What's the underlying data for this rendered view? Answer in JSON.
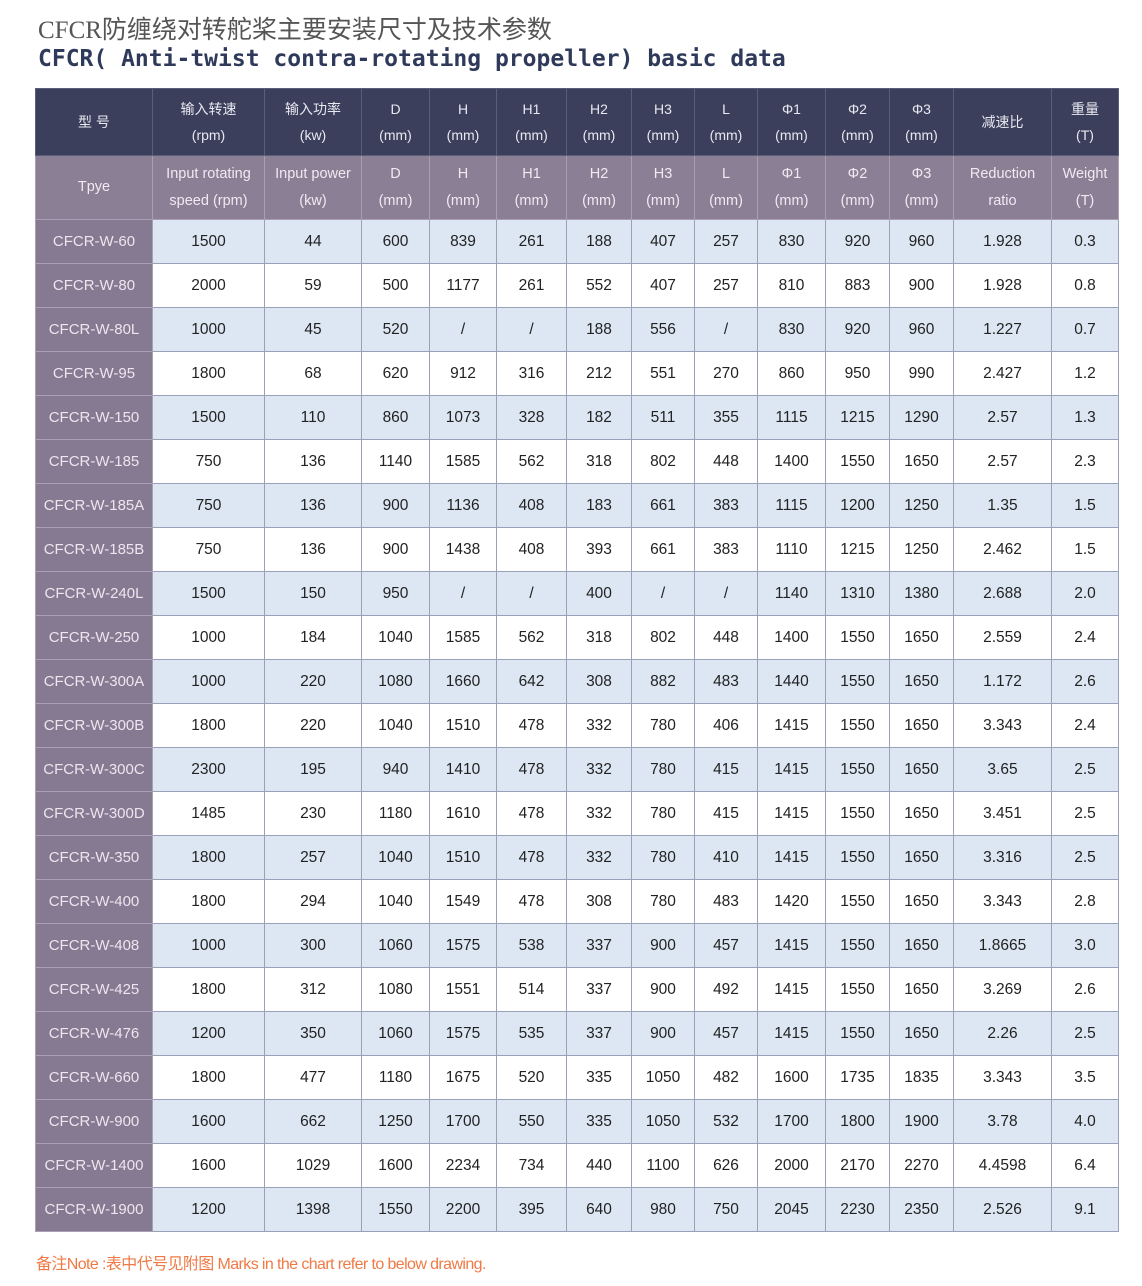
{
  "title_cn": "CFCR防缠绕对转舵桨主要安装尺寸及技术参数",
  "title_en": "CFCR( Anti-twist contra-rotating propeller) basic data",
  "header_cn": [
    [
      "型 号",
      ""
    ],
    [
      "输入转速",
      "(rpm)"
    ],
    [
      "输入功率",
      "(kw)"
    ],
    [
      "D",
      "(mm)"
    ],
    [
      "H",
      "(mm)"
    ],
    [
      "H1",
      "(mm)"
    ],
    [
      "H2",
      "(mm)"
    ],
    [
      "H3",
      "(mm)"
    ],
    [
      "L",
      "(mm)"
    ],
    [
      "Φ1",
      "(mm)"
    ],
    [
      "Φ2",
      "(mm)"
    ],
    [
      "Φ3",
      "(mm)"
    ],
    [
      "减速比",
      ""
    ],
    [
      "重量",
      "(T)"
    ]
  ],
  "header_en": [
    [
      "Tpye",
      ""
    ],
    [
      "Input rotating",
      "speed (rpm)"
    ],
    [
      "Input power",
      "(kw)"
    ],
    [
      "D",
      "(mm)"
    ],
    [
      "H",
      "(mm)"
    ],
    [
      "H1",
      "(mm)"
    ],
    [
      "H2",
      "(mm)"
    ],
    [
      "H3",
      "(mm)"
    ],
    [
      "L",
      "(mm)"
    ],
    [
      "Φ1",
      "(mm)"
    ],
    [
      "Φ2",
      "(mm)"
    ],
    [
      "Φ3",
      "(mm)"
    ],
    [
      "Reduction",
      "ratio"
    ],
    [
      "Weight",
      "(T)"
    ]
  ],
  "rows": [
    [
      "CFCR-W-60",
      "1500",
      "44",
      "600",
      "839",
      "261",
      "188",
      "407",
      "257",
      "830",
      "920",
      "960",
      "1.928",
      "0.3"
    ],
    [
      "CFCR-W-80",
      "2000",
      "59",
      "500",
      "1177",
      "261",
      "552",
      "407",
      "257",
      "810",
      "883",
      "900",
      "1.928",
      "0.8"
    ],
    [
      "CFCR-W-80L",
      "1000",
      "45",
      "520",
      "/",
      "/",
      "188",
      "556",
      "/",
      "830",
      "920",
      "960",
      "1.227",
      "0.7"
    ],
    [
      "CFCR-W-95",
      "1800",
      "68",
      "620",
      "912",
      "316",
      "212",
      "551",
      "270",
      "860",
      "950",
      "990",
      "2.427",
      "1.2"
    ],
    [
      "CFCR-W-150",
      "1500",
      "110",
      "860",
      "1073",
      "328",
      "182",
      "511",
      "355",
      "1115",
      "1215",
      "1290",
      "2.57",
      "1.3"
    ],
    [
      "CFCR-W-185",
      "750",
      "136",
      "1140",
      "1585",
      "562",
      "318",
      "802",
      "448",
      "1400",
      "1550",
      "1650",
      "2.57",
      "2.3"
    ],
    [
      "CFCR-W-185A",
      "750",
      "136",
      "900",
      "1136",
      "408",
      "183",
      "661",
      "383",
      "1115",
      "1200",
      "1250",
      "1.35",
      "1.5"
    ],
    [
      "CFCR-W-185B",
      "750",
      "136",
      "900",
      "1438",
      "408",
      "393",
      "661",
      "383",
      "1110",
      "1215",
      "1250",
      "2.462",
      "1.5"
    ],
    [
      "CFCR-W-240L",
      "1500",
      "150",
      "950",
      "/",
      "/",
      "400",
      "/",
      "/",
      "1140",
      "1310",
      "1380",
      "2.688",
      "2.0"
    ],
    [
      "CFCR-W-250",
      "1000",
      "184",
      "1040",
      "1585",
      "562",
      "318",
      "802",
      "448",
      "1400",
      "1550",
      "1650",
      "2.559",
      "2.4"
    ],
    [
      "CFCR-W-300A",
      "1000",
      "220",
      "1080",
      "1660",
      "642",
      "308",
      "882",
      "483",
      "1440",
      "1550",
      "1650",
      "1.172",
      "2.6"
    ],
    [
      "CFCR-W-300B",
      "1800",
      "220",
      "1040",
      "1510",
      "478",
      "332",
      "780",
      "406",
      "1415",
      "1550",
      "1650",
      "3.343",
      "2.4"
    ],
    [
      "CFCR-W-300C",
      "2300",
      "195",
      "940",
      "1410",
      "478",
      "332",
      "780",
      "415",
      "1415",
      "1550",
      "1650",
      "3.65",
      "2.5"
    ],
    [
      "CFCR-W-300D",
      "1485",
      "230",
      "1180",
      "1610",
      "478",
      "332",
      "780",
      "415",
      "1415",
      "1550",
      "1650",
      "3.451",
      "2.5"
    ],
    [
      "CFCR-W-350",
      "1800",
      "257",
      "1040",
      "1510",
      "478",
      "332",
      "780",
      "410",
      "1415",
      "1550",
      "1650",
      "3.316",
      "2.5"
    ],
    [
      "CFCR-W-400",
      "1800",
      "294",
      "1040",
      "1549",
      "478",
      "308",
      "780",
      "483",
      "1420",
      "1550",
      "1650",
      "3.343",
      "2.8"
    ],
    [
      "CFCR-W-408",
      "1000",
      "300",
      "1060",
      "1575",
      "538",
      "337",
      "900",
      "457",
      "1415",
      "1550",
      "1650",
      "1.8665",
      "3.0"
    ],
    [
      "CFCR-W-425",
      "1800",
      "312",
      "1080",
      "1551",
      "514",
      "337",
      "900",
      "492",
      "1415",
      "1550",
      "1650",
      "3.269",
      "2.6"
    ],
    [
      "CFCR-W-476",
      "1200",
      "350",
      "1060",
      "1575",
      "535",
      "337",
      "900",
      "457",
      "1415",
      "1550",
      "1650",
      "2.26",
      "2.5"
    ],
    [
      "CFCR-W-660",
      "1800",
      "477",
      "1180",
      "1675",
      "520",
      "335",
      "1050",
      "482",
      "1600",
      "1735",
      "1835",
      "3.343",
      "3.5"
    ],
    [
      "CFCR-W-900",
      "1600",
      "662",
      "1250",
      "1700",
      "550",
      "335",
      "1050",
      "532",
      "1700",
      "1800",
      "1900",
      "3.78",
      "4.0"
    ],
    [
      "CFCR-W-1400",
      "1600",
      "1029",
      "1600",
      "2234",
      "734",
      "440",
      "1100",
      "626",
      "2000",
      "2170",
      "2270",
      "4.4598",
      "6.4"
    ],
    [
      "CFCR-W-1900",
      "1200",
      "1398",
      "1550",
      "2200",
      "395",
      "640",
      "980",
      "750",
      "2045",
      "2230",
      "2350",
      "2.526",
      "9.1"
    ]
  ],
  "note": "备注Note :表中代号见附图 Marks in the chart refer to below drawing.",
  "colors": {
    "header_dark": "#3b3f5c",
    "header_mauve": "#8a7f95",
    "row_blue": "#dce7f3",
    "note": "#f07a45"
  }
}
